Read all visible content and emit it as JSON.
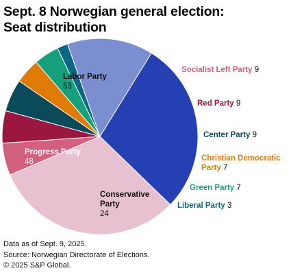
{
  "title_lines": [
    "Sept. 8 Norwegian general election:",
    "Seat distribution"
  ],
  "chart_data": {
    "type": "pie",
    "title": "Sept. 8 Norwegian general election: Seat distribution",
    "slices": [
      {
        "name": "Labor Party",
        "name_lines": [
          "Labor Party"
        ],
        "value": 53,
        "color": "#e8c1d0",
        "label_color": "#111111",
        "label_pos": "inside"
      },
      {
        "name": "Socialist Left Party",
        "name_lines": [
          "Socialist Left Party"
        ],
        "value": 9,
        "color": "#d2607e",
        "label_color": "#d2607e",
        "label_pos": "outside"
      },
      {
        "name": "Red Party",
        "name_lines": [
          "Red Party"
        ],
        "value": 9,
        "color": "#9b1740",
        "label_color": "#9b1740",
        "label_pos": "outside"
      },
      {
        "name": "Center Party",
        "name_lines": [
          "Center Party"
        ],
        "value": 9,
        "color": "#0b4a5a",
        "label_color": "#0b4a5a",
        "label_pos": "outside"
      },
      {
        "name": "Christian Democratic Party",
        "name_lines": [
          "Christian Democratic",
          "Party"
        ],
        "value": 7,
        "color": "#e07b06",
        "label_color": "#e07b06",
        "label_pos": "outside"
      },
      {
        "name": "Green Party",
        "name_lines": [
          "Green Party"
        ],
        "value": 7,
        "color": "#17a07c",
        "label_color": "#17a07c",
        "label_pos": "outside"
      },
      {
        "name": "Liberal Party",
        "name_lines": [
          "Liberal Party"
        ],
        "value": 3,
        "color": "#0d6784",
        "label_color": "#0d6784",
        "label_pos": "outside"
      },
      {
        "name": "Conservative Party",
        "name_lines": [
          "Conservative",
          "Party"
        ],
        "value": 24,
        "color": "#7a8ed0",
        "label_color": "#111111",
        "label_pos": "inside"
      },
      {
        "name": "Progress Party",
        "name_lines": [
          "Progress Party"
        ],
        "value": 48,
        "color": "#2440b2",
        "label_color": "#ffffff",
        "label_pos": "inside"
      }
    ],
    "value_color_outside": "#111111",
    "legend": "none"
  },
  "footer": {
    "note": "Data as of Sept. 9, 2025.",
    "source": "Source: Norwegian Directorate of Elections.",
    "copyright": "© 2025 S&P Global."
  }
}
